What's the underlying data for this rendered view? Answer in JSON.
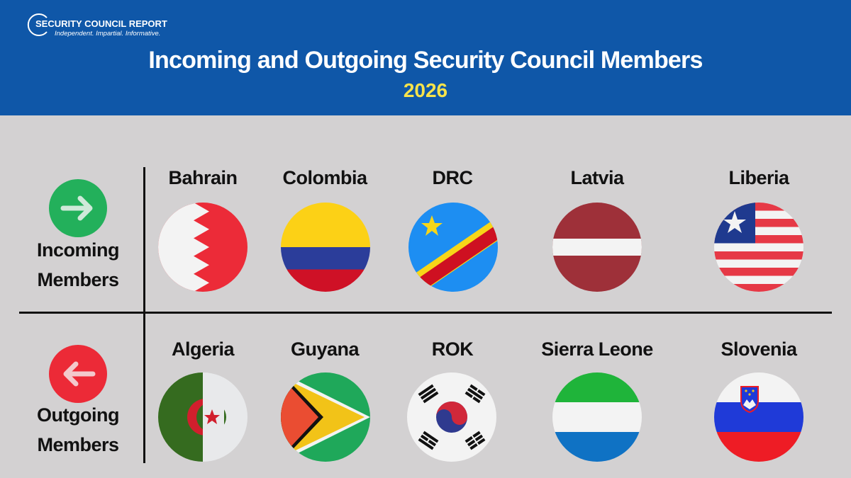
{
  "logo": {
    "name": "SECURITY COUNCIL REPORT",
    "tagline": "Independent. Impartial. Informative."
  },
  "title": "Incoming and Outgoing Security Council Members",
  "year": "2026",
  "colors": {
    "header": "#0f57a8",
    "year": "#f7e34b",
    "background": "#d3d1d2",
    "incoming": "#23b05b",
    "outgoing": "#ec2a37"
  },
  "incoming": {
    "label_line1": "Incoming",
    "label_line2": "Members",
    "icon": "arrow-right-icon",
    "countries": [
      {
        "name": "Bahrain",
        "flag": "bahrain-flag"
      },
      {
        "name": "Colombia",
        "flag": "colombia-flag"
      },
      {
        "name": "DRC",
        "flag": "drc-flag"
      },
      {
        "name": "Latvia",
        "flag": "latvia-flag"
      },
      {
        "name": "Liberia",
        "flag": "liberia-flag"
      }
    ]
  },
  "outgoing": {
    "label_line1": "Outgoing",
    "label_line2": "Members",
    "icon": "arrow-left-icon",
    "countries": [
      {
        "name": "Algeria",
        "flag": "algeria-flag"
      },
      {
        "name": "Guyana",
        "flag": "guyana-flag"
      },
      {
        "name": "ROK",
        "flag": "rok-flag"
      },
      {
        "name": "Sierra Leone",
        "flag": "sierra-leone-flag"
      },
      {
        "name": "Slovenia",
        "flag": "slovenia-flag"
      }
    ]
  }
}
